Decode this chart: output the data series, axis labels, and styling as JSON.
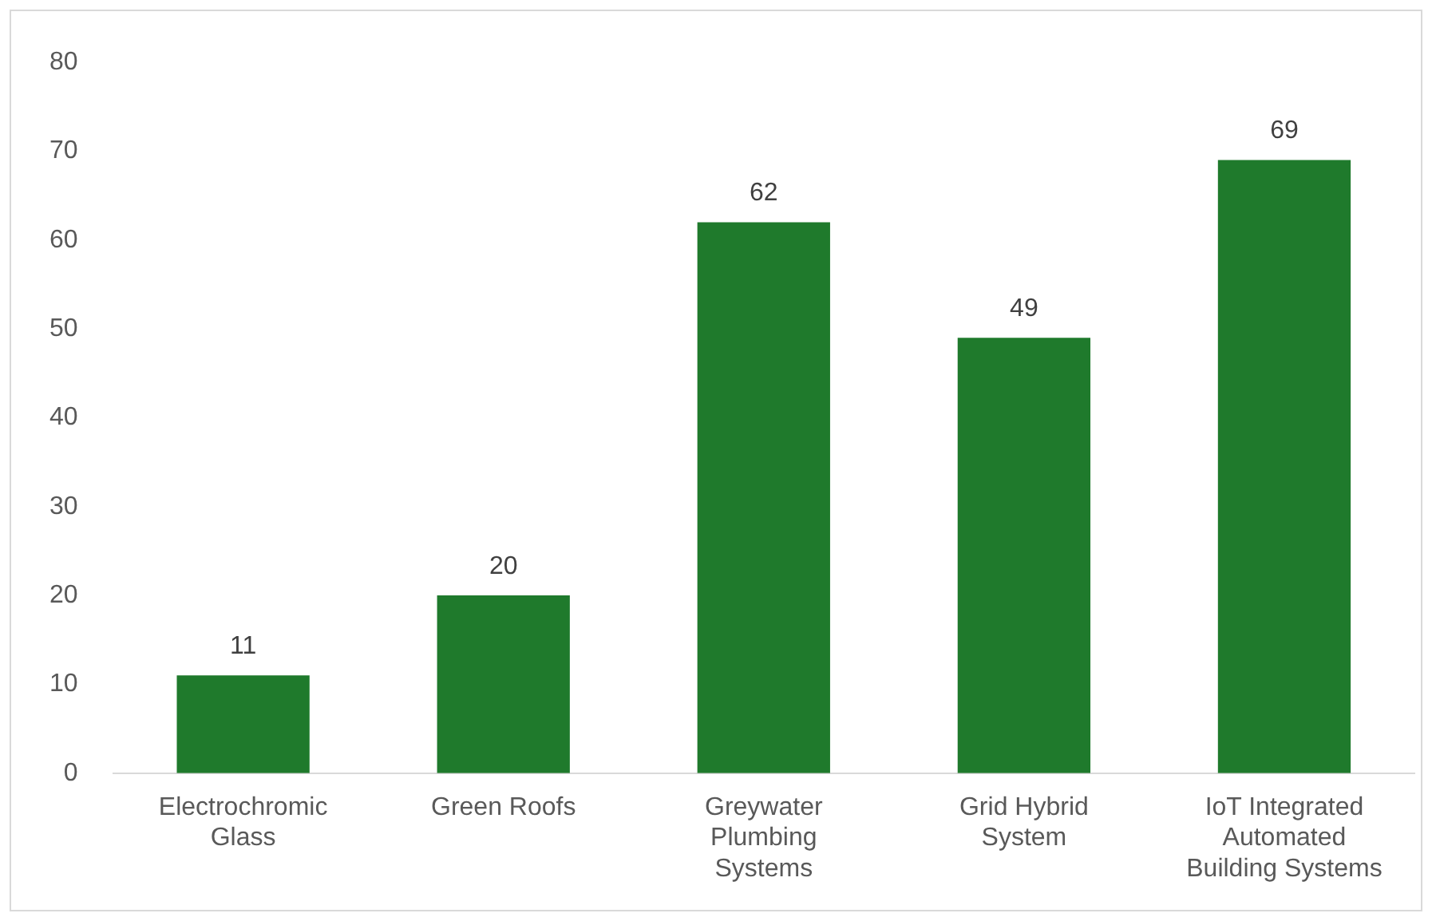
{
  "chart_data": {
    "type": "bar",
    "categories": [
      "Electrochromic Glass",
      "Green Roofs",
      "Greywater Plumbing Systems",
      "Grid Hybrid System",
      "IoT Integrated Automated Building Systems"
    ],
    "values": [
      11,
      20,
      62,
      49,
      69
    ],
    "color": "#1f7a2c",
    "ylim": [
      0,
      80
    ],
    "yticks": [
      0,
      10,
      20,
      30,
      40,
      50,
      60,
      70,
      80
    ],
    "grid": false,
    "data_labels": true
  }
}
